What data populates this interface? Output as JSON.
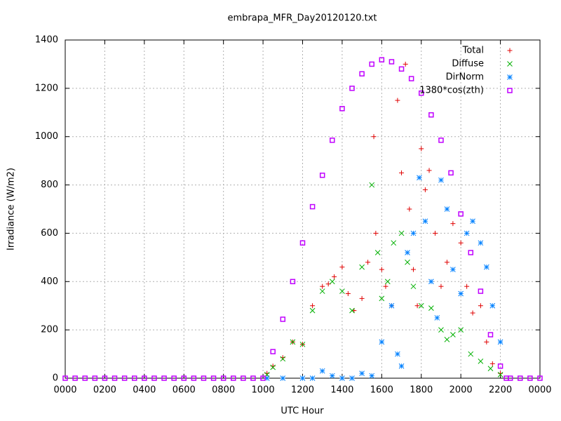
{
  "chart_data": {
    "type": "scatter",
    "title": "embrapa_MFR_Day20120120.txt",
    "xlabel": "UTC Hour",
    "ylabel": "Irradiance (W/m2)",
    "xlim": [
      0,
      24
    ],
    "ylim": [
      0,
      1400
    ],
    "xticks": [
      {
        "value": 0,
        "label": "0000"
      },
      {
        "value": 2,
        "label": "0200"
      },
      {
        "value": 4,
        "label": "0400"
      },
      {
        "value": 6,
        "label": "0600"
      },
      {
        "value": 8,
        "label": "0800"
      },
      {
        "value": 10,
        "label": "1000"
      },
      {
        "value": 12,
        "label": "1200"
      },
      {
        "value": 14,
        "label": "1400"
      },
      {
        "value": 16,
        "label": "1600"
      },
      {
        "value": 18,
        "label": "1800"
      },
      {
        "value": 20,
        "label": "2000"
      },
      {
        "value": 22,
        "label": "2200"
      },
      {
        "value": 24,
        "label": "0000"
      }
    ],
    "yticks": [
      0,
      200,
      400,
      600,
      800,
      1000,
      1200,
      1400
    ],
    "grid": true,
    "legend": "top-right",
    "series": [
      {
        "name": "Total",
        "color": "#e00000",
        "marker": "plus",
        "x": [
          10.2,
          10.5,
          11,
          11.5,
          12,
          12.5,
          13,
          13.3,
          13.6,
          14,
          14.3,
          14.6,
          15,
          15.3,
          15.6,
          15.7,
          16,
          16.2,
          16.5,
          16.8,
          17,
          17.2,
          17.4,
          17.6,
          17.8,
          18,
          18.2,
          18.4,
          18.7,
          19,
          19.3,
          19.6,
          20,
          20.3,
          20.6,
          21,
          21.3,
          21.6,
          22
        ],
        "values": [
          20,
          50,
          85,
          150,
          140,
          300,
          380,
          390,
          420,
          460,
          350,
          280,
          330,
          480,
          1000,
          600,
          450,
          380,
          300,
          1150,
          850,
          1300,
          700,
          450,
          300,
          950,
          780,
          860,
          600,
          380,
          480,
          640,
          560,
          380,
          270,
          300,
          150,
          60,
          20
        ]
      },
      {
        "name": "Diffuse",
        "color": "#00b000",
        "marker": "cross",
        "x": [
          10.2,
          10.5,
          11,
          11.5,
          12,
          12.5,
          13,
          13.5,
          14,
          14.5,
          15,
          15.5,
          15.8,
          16,
          16.3,
          16.6,
          17,
          17.3,
          17.6,
          18,
          18.5,
          19,
          19.3,
          19.6,
          20,
          20.5,
          21,
          21.5,
          22
        ],
        "values": [
          15,
          45,
          80,
          150,
          140,
          280,
          360,
          400,
          360,
          280,
          460,
          800,
          520,
          330,
          400,
          560,
          600,
          480,
          380,
          300,
          290,
          200,
          160,
          180,
          200,
          100,
          70,
          40,
          15
        ]
      },
      {
        "name": "DirNorm",
        "color": "#0080ff",
        "marker": "star",
        "x": [
          10.2,
          11,
          12,
          12.5,
          13,
          13.5,
          14,
          14.5,
          15,
          15.5,
          16,
          16.5,
          16.8,
          17,
          17.3,
          17.6,
          17.9,
          18.2,
          18.5,
          18.8,
          19,
          19.3,
          19.6,
          20,
          20.3,
          20.6,
          21,
          21.3,
          21.6,
          22
        ],
        "values": [
          0,
          0,
          0,
          0,
          30,
          10,
          0,
          0,
          20,
          10,
          150,
          300,
          100,
          50,
          520,
          600,
          830,
          650,
          400,
          250,
          820,
          700,
          450,
          350,
          600,
          650,
          560,
          460,
          300,
          150
        ]
      },
      {
        "name": "1380*cos(zth)",
        "color": "#c000ff",
        "marker": "square",
        "x": [
          0,
          0.5,
          1,
          1.5,
          2,
          2.5,
          3,
          3.5,
          4,
          4.5,
          5,
          5.5,
          6,
          6.5,
          7,
          7.5,
          8,
          8.5,
          9,
          9.5,
          10,
          10.5,
          11,
          11.5,
          12,
          12.5,
          13,
          13.5,
          14,
          14.5,
          15,
          15.5,
          16,
          16.5,
          17,
          17.5,
          18,
          18.5,
          19,
          19.5,
          20,
          20.5,
          21,
          21.5,
          22,
          22.3,
          22.5,
          23,
          23.5,
          24
        ],
        "values": [
          0,
          0,
          0,
          0,
          0,
          0,
          0,
          0,
          0,
          0,
          0,
          0,
          0,
          0,
          0,
          0,
          0,
          0,
          0,
          0,
          0,
          110,
          244,
          400,
          560,
          710,
          840,
          985,
          1116,
          1200,
          1260,
          1300,
          1318,
          1310,
          1280,
          1240,
          1180,
          1090,
          985,
          850,
          680,
          520,
          360,
          180,
          50,
          0,
          0,
          0,
          0,
          0
        ]
      }
    ]
  }
}
